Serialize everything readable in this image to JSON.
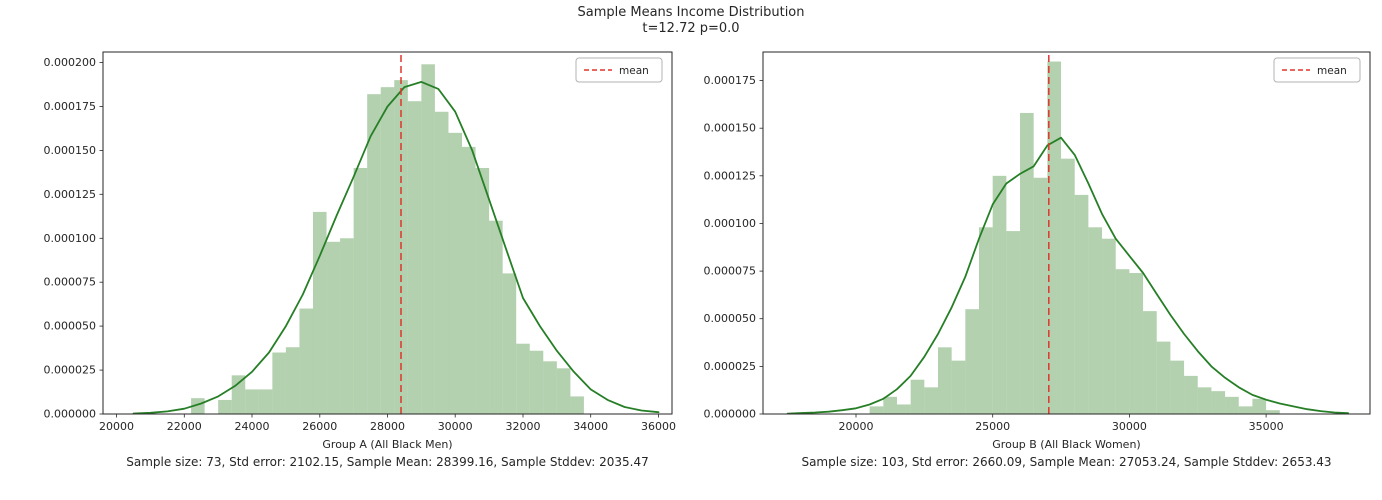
{
  "figure": {
    "title": "Sample Means Income Distribution",
    "subtitle": "t=12.72 p=0.0",
    "t_stat": 12.72,
    "p_value": 0.0,
    "background": "#ffffff"
  },
  "colors": {
    "hist_fill": "#619e57",
    "hist_fill_opacity": 0.48,
    "kde_stroke": "#267f26",
    "mean_line": "#e0362c",
    "axis": "#262626",
    "legend_border": "#b3b3b3",
    "text": "#262626"
  },
  "chart_data": [
    {
      "type": "histogram+kde",
      "xlabel": "Group A (All Black Men)",
      "stats_label": "Sample size: 73, Std error: 2102.15, Sample Mean: 28399.16, Sample Stddev: 2035.47",
      "sample_size": 73,
      "std_error": 2102.15,
      "sample_mean": 28399.16,
      "sample_stddev": 2035.47,
      "legend": {
        "label": "mean",
        "position": "upper right"
      },
      "mean": 28399.16,
      "xlim": [
        19600,
        36400
      ],
      "ylim_micro": [
        0,
        206
      ],
      "density_scale": 1e-06,
      "x_ticks": [
        20000,
        22000,
        24000,
        26000,
        28000,
        30000,
        32000,
        34000,
        36000
      ],
      "y_ticks_micro": [
        0,
        25,
        50,
        75,
        100,
        125,
        150,
        175,
        200
      ],
      "y_tick_labels": [
        "0.000000",
        "0.000025",
        "0.000050",
        "0.000075",
        "0.000100",
        "0.000125",
        "0.000150",
        "0.000175",
        "0.000200"
      ],
      "hist": {
        "bin_start": 22200,
        "bin_width": 400,
        "densities_micro": [
          9,
          0,
          8,
          22,
          14,
          14,
          35,
          38,
          60,
          115,
          98,
          100,
          140,
          182,
          186,
          190,
          178,
          199,
          172,
          160,
          152,
          140,
          110,
          80,
          40,
          36,
          30,
          26,
          10
        ]
      },
      "kde": {
        "x": [
          20500,
          21000,
          21500,
          22000,
          22500,
          23000,
          23500,
          24000,
          24500,
          25000,
          25500,
          26000,
          26500,
          27000,
          27500,
          28000,
          28500,
          29000,
          29500,
          30000,
          30500,
          31000,
          31500,
          32000,
          32500,
          33000,
          33500,
          34000,
          34500,
          35000,
          35500,
          36000
        ],
        "y_micro": [
          0.3,
          0.7,
          1.5,
          3,
          6,
          10,
          16,
          24,
          35,
          50,
          68,
          90,
          113,
          135,
          158,
          175,
          186,
          189,
          185,
          172,
          150,
          122,
          94,
          66,
          50,
          36,
          24,
          14,
          8,
          4,
          2,
          1
        ]
      }
    },
    {
      "type": "histogram+kde",
      "xlabel": "Group B (All Black Women)",
      "stats_label": "Sample size: 103, Std error: 2660.09, Sample Mean: 27053.24, Sample Stddev: 2653.43",
      "sample_size": 103,
      "std_error": 2660.09,
      "sample_mean": 27053.24,
      "sample_stddev": 2653.43,
      "legend": {
        "label": "mean",
        "position": "upper right"
      },
      "mean": 27053.24,
      "xlim": [
        16600,
        38800
      ],
      "ylim_micro": [
        0,
        190
      ],
      "density_scale": 1e-06,
      "x_ticks": [
        20000,
        25000,
        30000,
        35000
      ],
      "y_ticks_micro": [
        0,
        25,
        50,
        75,
        100,
        125,
        150,
        175
      ],
      "y_tick_labels": [
        "0.000000",
        "0.000025",
        "0.000050",
        "0.000075",
        "0.000100",
        "0.000125",
        "0.000150",
        "0.000175"
      ],
      "hist": {
        "bin_start": 20500,
        "bin_width": 500,
        "densities_micro": [
          4,
          9,
          5,
          18,
          14,
          35,
          28,
          55,
          98,
          125,
          96,
          158,
          124,
          185,
          134,
          115,
          98,
          92,
          76,
          74,
          54,
          38,
          28,
          20,
          14,
          12,
          9,
          4,
          8,
          2
        ]
      },
      "kde": {
        "x": [
          17500,
          18000,
          18500,
          19000,
          19500,
          20000,
          20500,
          21000,
          21500,
          22000,
          22500,
          23000,
          23500,
          24000,
          24500,
          25000,
          25500,
          26000,
          26500,
          27000,
          27500,
          28000,
          28500,
          29000,
          29500,
          30000,
          30500,
          31000,
          31500,
          32000,
          32500,
          33000,
          33500,
          34000,
          34500,
          35000,
          35500,
          36000,
          36500,
          37000,
          37500,
          38000
        ],
        "y_micro": [
          0.2,
          0.5,
          0.8,
          1.2,
          2,
          3,
          5,
          8,
          13,
          20,
          30,
          42,
          56,
          72,
          92,
          110,
          121,
          126,
          130,
          141,
          145,
          136,
          121,
          105,
          92,
          83,
          74,
          63,
          52,
          42,
          33,
          25,
          19,
          14,
          10,
          7.5,
          5.5,
          4,
          2.5,
          1.5,
          0.8,
          0.4
        ]
      }
    }
  ]
}
